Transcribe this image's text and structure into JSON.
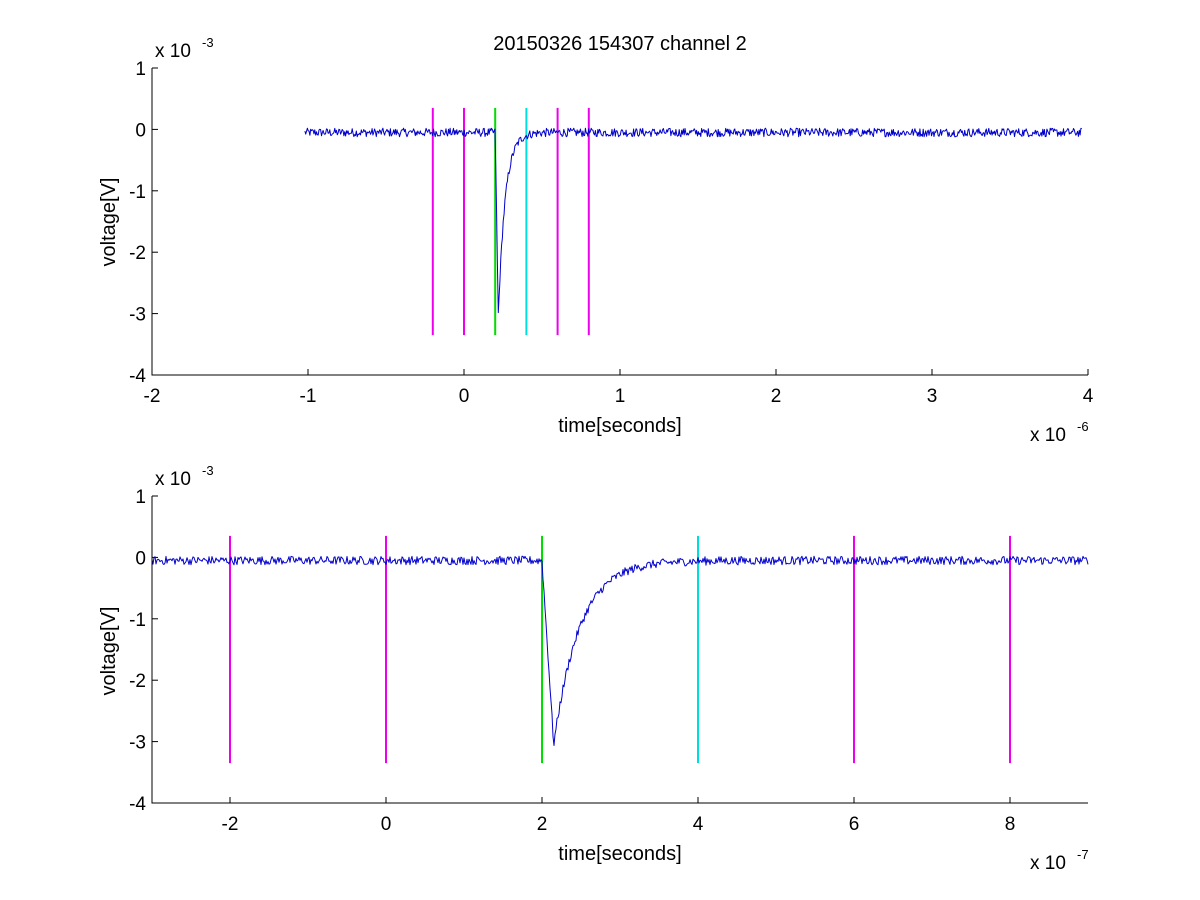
{
  "chart_data": [
    {
      "type": "line",
      "title": "20150326 154307 channel 2",
      "xlabel": "time[seconds]",
      "ylabel": "voltage[V]",
      "x_multiplier_text": "x 10",
      "x_multiplier_exp": "-6",
      "y_multiplier_text": "x 10",
      "y_multiplier_exp": "-3",
      "x_unit_scale": 1e-06,
      "y_unit_scale": 0.001,
      "xlim": [
        -2,
        4
      ],
      "ylim": [
        -4,
        1
      ],
      "xticks": [
        -2,
        -1,
        0,
        1,
        2,
        3,
        4
      ],
      "xtick_labels": [
        "-2",
        "-1",
        "0",
        "1",
        "2",
        "3",
        "4"
      ],
      "yticks": [
        -4,
        -3,
        -2,
        -1,
        0,
        1
      ],
      "ytick_labels": [
        "-4",
        "-3",
        "-2",
        "-1",
        "0",
        "1"
      ],
      "grid": false,
      "series": [
        {
          "color": "#0000cc",
          "x_range": [
            -1.02,
            3.96
          ],
          "baseline": -0.05,
          "noise": 0.07,
          "pulse": {
            "t0": 0.2,
            "t_min": 0.22,
            "min": -3.05,
            "shape": "fast-fall-slow-recovery"
          }
        }
      ],
      "markers": [
        {
          "x": -0.2,
          "color": "#ee00ee"
        },
        {
          "x": 0.0,
          "color": "#ee00ee"
        },
        {
          "x": 0.2,
          "color": "#00dd00"
        },
        {
          "x": 0.4,
          "color": "#00dddd"
        },
        {
          "x": 0.6,
          "color": "#ee00ee"
        },
        {
          "x": 0.8,
          "color": "#ee00ee"
        }
      ],
      "marker_y_range": [
        -3.35,
        0.35
      ]
    },
    {
      "type": "line",
      "title": "",
      "xlabel": "time[seconds]",
      "ylabel": "voltage[V]",
      "x_multiplier_text": "x 10",
      "x_multiplier_exp": "-7",
      "y_multiplier_text": "x 10",
      "y_multiplier_exp": "-3",
      "x_unit_scale": 1e-07,
      "y_unit_scale": 0.001,
      "xlim": [
        -3,
        9
      ],
      "ylim": [
        -4,
        1
      ],
      "xticks": [
        -2,
        0,
        2,
        4,
        6,
        8
      ],
      "xtick_labels": [
        "-2",
        "0",
        "2",
        "4",
        "6",
        "8"
      ],
      "yticks": [
        -4,
        -3,
        -2,
        -1,
        0,
        1
      ],
      "ytick_labels": [
        "-4",
        "-3",
        "-2",
        "-1",
        "0",
        "1"
      ],
      "grid": false,
      "series": [
        {
          "color": "#0000cc",
          "x_range": [
            -3,
            9
          ],
          "baseline": -0.05,
          "noise": 0.07,
          "pulse": {
            "t0": 2.0,
            "t_min": 2.15,
            "min": -3.05,
            "shape": "fast-fall-slow-recovery"
          }
        }
      ],
      "markers": [
        {
          "x": -2,
          "color": "#ee00ee"
        },
        {
          "x": 0,
          "color": "#ee00ee"
        },
        {
          "x": 2,
          "color": "#00dd00"
        },
        {
          "x": 4,
          "color": "#00dddd"
        },
        {
          "x": 6,
          "color": "#ee00ee"
        },
        {
          "x": 8,
          "color": "#ee00ee"
        }
      ],
      "marker_y_range": [
        -3.35,
        0.35
      ]
    }
  ]
}
